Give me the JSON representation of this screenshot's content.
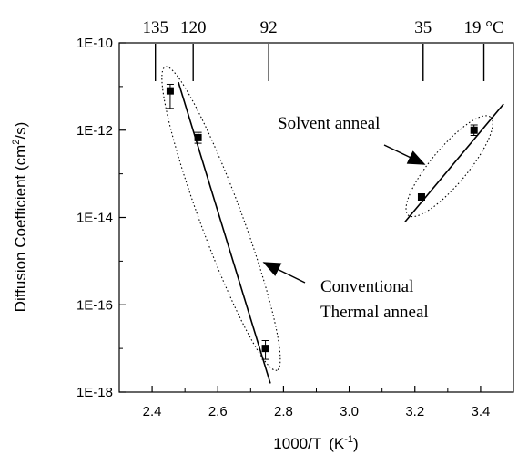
{
  "chart_data": {
    "type": "scatter",
    "xlabel_base": "1000/T",
    "xlabel_unit": "(K",
    "xlabel_unit_sup": "-1",
    "xlabel_unit_close": ")",
    "ylabel_base": "Diffusion Coefficient (cm",
    "ylabel_sup": "2",
    "ylabel_close": "/s)",
    "xlim": [
      2.3,
      3.5
    ],
    "ylim_log10": [
      -18,
      -10
    ],
    "y_scale": "log",
    "x_ticks": [
      "2.4",
      "2.6",
      "2.8",
      "3.0",
      "3.2",
      "3.4"
    ],
    "x_tick_values": [
      2.4,
      2.6,
      2.8,
      3.0,
      3.2,
      3.4
    ],
    "y_ticks": [
      "1E-18",
      "1E-16",
      "1E-14",
      "1E-12",
      "1E-10"
    ],
    "y_tick_exponents": [
      -18,
      -16,
      -14,
      -12,
      -10
    ],
    "top_axis_labels": [
      {
        "label": "135",
        "x": 2.41
      },
      {
        "label": "120",
        "x": 2.525
      },
      {
        "label": "92",
        "x": 2.755
      },
      {
        "label": "35",
        "x": 3.225
      },
      {
        "label": "19 °C",
        "x": 3.41
      }
    ],
    "points": [
      {
        "x": 2.455,
        "y_exp": -11.1,
        "err_low_exp": -11.5,
        "err_high_exp": -10.95
      },
      {
        "x": 2.54,
        "y_exp": -12.17,
        "err_low_exp": -12.3,
        "err_high_exp": -12.05
      },
      {
        "x": 2.745,
        "y_exp": -17.0,
        "err_low_exp": -17.25,
        "err_high_exp": -16.82
      },
      {
        "x": 3.22,
        "y_exp": -13.53,
        "err_low_exp": -13.6,
        "err_high_exp": -13.47
      },
      {
        "x": 3.38,
        "y_exp": -12.0,
        "err_low_exp": -12.12,
        "err_high_exp": -11.88
      }
    ],
    "fit_lines": [
      {
        "x1": 2.48,
        "y1_exp": -10.9,
        "x2": 2.76,
        "y2_exp": -17.8
      },
      {
        "x1": 3.17,
        "y1_exp": -14.1,
        "x2": 3.47,
        "y2_exp": -11.4
      }
    ],
    "ellipses": [
      {
        "cx": 2.61,
        "cy_exp": -14.05,
        "through_x1": 2.44,
        "through_y1_exp": -10.55,
        "through_x2": 2.78,
        "through_y2_exp": -17.5,
        "minor_px": 23
      },
      {
        "cx": 3.3,
        "cy_exp": -12.85,
        "through_x1": 3.18,
        "through_y1_exp": -13.95,
        "through_x2": 3.43,
        "through_y2_exp": -11.7,
        "minor_px": 20
      }
    ],
    "annotations": [
      {
        "text": "Solvent anneal",
        "lines": [
          "Solvent anneal"
        ]
      },
      {
        "text": "Conventional Thermal anneal",
        "lines": [
          "Conventional",
          "Thermal anneal"
        ]
      }
    ]
  }
}
